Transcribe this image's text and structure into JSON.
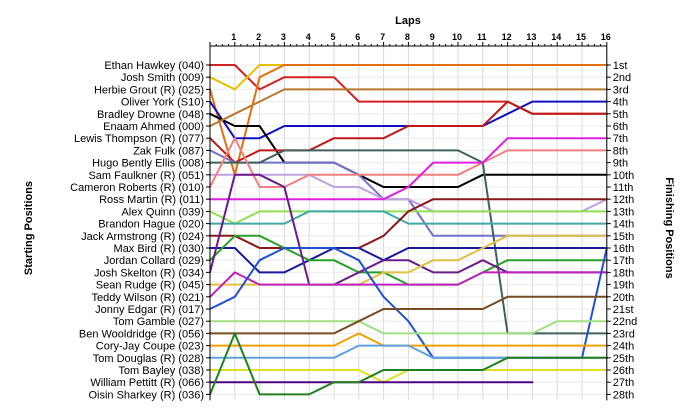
{
  "chart_data": {
    "type": "line",
    "title": "Laps",
    "ylabel_left": "Starting Positions",
    "ylabel_right": "Finishing Positions",
    "laps": [
      1,
      2,
      3,
      4,
      5,
      6,
      7,
      8,
      9,
      10,
      11,
      12,
      13,
      14,
      15,
      16
    ],
    "start_labels": [
      "Ethan Hawkey (040)",
      "Josh Smith (009)",
      "Herbie Grout (R) (025)",
      "Oliver York (S10)",
      "Bradley Drowne (048)",
      "Enaam Ahmed (000)",
      "Lewis Thompson (R) (077)",
      "Zak Fulk (087)",
      "Hugo Bently Ellis (008)",
      "Sam Faulkner (R) (051)",
      "Cameron Roberts (R) (010)",
      "Ross Martin (R) (011)",
      "Alex Quinn (039)",
      "Brandon Hague (020)",
      "Jack Armstrong (R) (024)",
      "Max Bird (R) (030)",
      "Jordan Collard (029)",
      "Josh Skelton (R) (034)",
      "Sean Rudge (R) (045)",
      "Teddy Wilson (R) (021)",
      "Jonny Edgar (R) (017)",
      "Tom Gamble (027)",
      "Ben Wooldridge (R) (056)",
      "Cory-Jay Coupe (023)",
      "Tom Douglas (R) (028)",
      "Tom Bayley (038)",
      "William Pettitt (R) (066)",
      "Oisin Sharkey (R) (036)"
    ],
    "finish_labels": [
      "1st",
      "2nd",
      "3rd",
      "4th",
      "5th",
      "6th",
      "7th",
      "8th",
      "9th",
      "10th",
      "11th",
      "12th",
      "13th",
      "14th",
      "15th",
      "16th",
      "17th",
      "18th",
      "19th",
      "20th",
      "21st",
      "22nd",
      "23rd",
      "24th",
      "25th",
      "26th",
      "27th",
      "28th"
    ],
    "grid": true,
    "series": [
      {
        "color": "#d42020",
        "positions": [
          1,
          1,
          3,
          2,
          2,
          2,
          4,
          4,
          4,
          4,
          4,
          4,
          4,
          5,
          5,
          5,
          5
        ]
      },
      {
        "color": "#e8c000",
        "positions": [
          2,
          3,
          1,
          1,
          1,
          1,
          1,
          1,
          1,
          1,
          1,
          1,
          1,
          1,
          1,
          1,
          1
        ]
      },
      {
        "color": "#e07010",
        "positions": [
          3,
          10,
          2,
          1,
          1,
          1,
          1,
          1,
          1,
          1,
          1,
          1,
          1,
          1,
          1,
          1,
          1
        ]
      },
      {
        "color": "#1010c0",
        "positions": [
          4,
          7,
          7,
          6,
          6,
          6,
          6,
          6,
          6,
          6,
          6,
          6,
          5,
          4,
          4,
          4,
          4
        ]
      },
      {
        "color": "#000000",
        "positions": [
          5,
          6,
          6,
          9,
          9,
          9,
          10,
          11,
          11,
          11,
          11,
          10,
          10,
          10,
          10,
          10,
          10
        ]
      },
      {
        "color": "#b87830",
        "positions": [
          6,
          5,
          4,
          3,
          3,
          3,
          3,
          3,
          3,
          3,
          3,
          3,
          3,
          3,
          3,
          3,
          3
        ]
      },
      {
        "color": "#c01818",
        "positions": [
          7,
          9,
          8,
          8,
          8,
          7,
          7,
          7,
          6,
          6,
          6,
          6,
          4,
          5,
          5,
          5,
          5
        ]
      },
      {
        "color": "#7070d0",
        "positions": [
          8,
          9,
          9,
          9,
          9,
          9,
          10,
          12,
          12,
          15,
          15,
          15,
          15,
          15,
          15,
          15,
          15
        ]
      },
      {
        "color": "#406060",
        "positions": [
          9,
          9,
          9,
          8,
          8,
          8,
          8,
          8,
          8,
          8,
          8,
          9,
          23,
          23,
          23,
          23,
          23
        ]
      },
      {
        "color": "#c0a0e0",
        "positions": [
          10,
          10,
          10,
          10,
          10,
          11,
          11,
          12,
          12,
          13,
          13,
          13,
          13,
          13,
          13,
          13,
          12
        ]
      },
      {
        "color": "#f08080",
        "positions": [
          11,
          7,
          11,
          11,
          10,
          10,
          10,
          10,
          10,
          10,
          10,
          9,
          8,
          8,
          8,
          8,
          8
        ]
      },
      {
        "color": "#e020e0",
        "positions": [
          12,
          12,
          12,
          12,
          12,
          12,
          12,
          12,
          11,
          9,
          9,
          9,
          7,
          7,
          7,
          7,
          7
        ]
      },
      {
        "color": "#90e050",
        "positions": [
          13,
          14,
          13,
          13,
          13,
          13,
          13,
          13,
          13,
          13,
          13,
          13,
          13,
          13,
          13,
          13,
          13
        ]
      },
      {
        "color": "#40a8a8",
        "positions": [
          14,
          14,
          14,
          14,
          13,
          13,
          13,
          13,
          14,
          14,
          14,
          14,
          14,
          14,
          14,
          14,
          14
        ]
      },
      {
        "color": "#8b1818",
        "positions": [
          15,
          15,
          16,
          16,
          16,
          16,
          16,
          15,
          13,
          12,
          12,
          12,
          12,
          12,
          12,
          12,
          12
        ]
      },
      {
        "color": "#1818a0",
        "positions": [
          16,
          16,
          18,
          18,
          17,
          16,
          16,
          17,
          16,
          16,
          16,
          16,
          16,
          16,
          16,
          16,
          16
        ]
      },
      {
        "color": "#28a028",
        "positions": [
          17,
          15,
          15,
          16,
          17,
          17,
          18,
          18,
          19,
          19,
          19,
          18,
          17,
          17,
          17,
          17,
          17
        ]
      },
      {
        "color": "#6a1a8a",
        "positions": [
          18,
          10,
          10,
          11,
          19,
          19,
          18,
          17,
          17,
          18,
          18,
          17,
          18,
          18,
          18,
          18,
          18
        ]
      },
      {
        "color": "#e0c040",
        "positions": [
          19,
          19,
          19,
          19,
          19,
          19,
          19,
          18,
          18,
          17,
          17,
          16,
          15,
          15,
          15,
          15,
          15
        ]
      },
      {
        "color": "#c020c0",
        "positions": [
          20,
          18,
          19,
          19,
          19,
          19,
          19,
          19,
          19,
          19,
          19,
          18,
          18,
          18,
          18,
          18,
          18
        ]
      },
      {
        "color": "#2050d0",
        "positions": [
          21,
          20,
          17,
          16,
          16,
          16,
          17,
          20,
          22,
          25,
          25,
          25,
          25,
          25,
          25,
          25,
          16
        ]
      },
      {
        "color": "#a0e080",
        "positions": [
          22,
          22,
          22,
          22,
          22,
          22,
          22,
          23,
          23,
          23,
          23,
          23,
          23,
          23,
          22,
          22,
          22
        ]
      },
      {
        "color": "#7a4a20",
        "positions": [
          23,
          23,
          23,
          23,
          23,
          23,
          22,
          21,
          21,
          21,
          21,
          21,
          20,
          20,
          20,
          20,
          20
        ]
      },
      {
        "color": "#f0a000",
        "positions": [
          24,
          24,
          24,
          24,
          24,
          24,
          23,
          24,
          24,
          24,
          24,
          24,
          24,
          24,
          24,
          24,
          24
        ]
      },
      {
        "color": "#60a0e0",
        "positions": [
          25,
          25,
          25,
          25,
          25,
          25,
          24,
          24,
          24,
          25,
          25,
          25,
          25,
          25,
          25,
          25,
          25
        ]
      },
      {
        "color": "#e0e020",
        "positions": [
          26,
          26,
          26,
          26,
          26,
          26,
          26,
          27,
          26,
          26,
          26,
          26,
          26,
          26,
          26,
          26,
          26
        ]
      },
      {
        "color": "#500080",
        "positions": [
          27,
          27,
          27,
          27,
          27,
          27,
          27,
          27,
          27,
          27,
          27,
          27,
          27,
          27
        ]
      },
      {
        "color": "#208020",
        "positions": [
          28,
          23,
          28,
          28,
          28,
          27,
          27,
          26,
          26,
          26,
          26,
          26,
          25,
          25,
          25,
          25,
          25
        ]
      }
    ]
  }
}
